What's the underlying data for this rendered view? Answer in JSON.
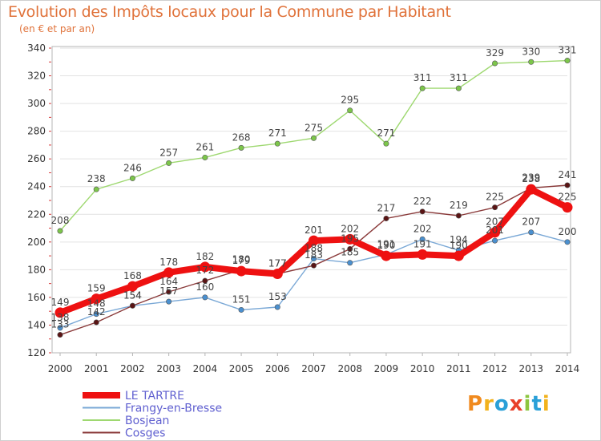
{
  "header": {
    "title": "Evolution des Impôts locaux pour la Commune par Habitant",
    "subtitle": "(en € et par an)"
  },
  "logo": {
    "text": "Proxiti",
    "letter_colors": [
      "#f08a1e",
      "#f2b21c",
      "#2aa0d8",
      "#e8402a",
      "#8cc63f",
      "#2aa0d8",
      "#f2b21c"
    ]
  },
  "colors": {
    "plot_border": "#b5b5b5",
    "grid": "#e2e2e2",
    "axis_tick": "#d83a3a"
  },
  "chart_data": {
    "type": "line",
    "title": "Evolution des Impôts locaux pour la Commune par Habitant",
    "subtitle": "(en € et par an)",
    "x": [
      2000,
      2001,
      2002,
      2003,
      2004,
      2005,
      2006,
      2007,
      2008,
      2009,
      2010,
      2011,
      2012,
      2013,
      2014
    ],
    "x_tick_labels": [
      "2000",
      "2001",
      "2002",
      "2003",
      "2004",
      "2005",
      "2006",
      "2007",
      "2008",
      "2009",
      "2010",
      "2011",
      "2012",
      "2013",
      "2014"
    ],
    "ylim": [
      120,
      340
    ],
    "y_ticks": [
      120,
      140,
      160,
      180,
      200,
      220,
      240,
      260,
      280,
      300,
      320,
      340
    ],
    "grid": "horizontal",
    "legend_position": "bottom-left",
    "series": [
      {
        "name": "Bosjean",
        "color": "#9ed870",
        "marker_color": "#7cc64a",
        "values": [
          208,
          238,
          246,
          257,
          261,
          268,
          271,
          275,
          295,
          271,
          311,
          311,
          329,
          330,
          331
        ]
      },
      {
        "name": "Frangy-en-Bresse",
        "color": "#7aa8d6",
        "marker_color": "#4a90d0",
        "values": [
          138,
          148,
          154,
          157,
          160,
          151,
          153,
          188,
          185,
          191,
          202,
          194,
          201,
          207,
          200
        ]
      },
      {
        "name": "Cosges",
        "color": "#8a3a3a",
        "marker_color": "#5a1414",
        "values": [
          133,
          142,
          154,
          164,
          172,
          180,
          177,
          183,
          195,
          217,
          222,
          219,
          225,
          239,
          241
        ]
      },
      {
        "name": "LE TARTRE",
        "color": "#ee1111",
        "marker_color": "#ee1111",
        "values": [
          149,
          159,
          168,
          178,
          182,
          179,
          177,
          201,
          202,
          190,
          191,
          190,
          207,
          238,
          225
        ]
      }
    ],
    "data_labels": [
      {
        "series": "Bosjean",
        "values": [
          "208",
          "238",
          "246",
          "257",
          "261",
          "268",
          "271",
          "275",
          "295",
          "271",
          "311",
          "311",
          "329",
          "330",
          "331"
        ]
      },
      {
        "series": "Frangy-en-Bresse",
        "values": [
          "138",
          "148",
          "154",
          "157",
          "160",
          "151",
          "153",
          "188",
          "185",
          "191",
          "202",
          "194",
          "201",
          "207",
          "200"
        ]
      },
      {
        "series": "Cosges",
        "values": [
          "133",
          "142",
          "154",
          "164",
          "172",
          "180",
          "177",
          "183",
          "195",
          "217",
          "222",
          "219",
          "225",
          "239",
          "241"
        ]
      },
      {
        "series": "LE TARTRE",
        "values": [
          "149",
          "159",
          "168",
          "178",
          "182",
          "179",
          "177",
          "201",
          "202",
          "190",
          "191",
          "190",
          "207",
          "238",
          "225"
        ]
      }
    ]
  },
  "legend": {
    "items": [
      {
        "label": "LE TARTRE",
        "color": "#ee1111",
        "thick": true
      },
      {
        "label": "Frangy-en-Bresse",
        "color": "#7aa8d6",
        "thick": false
      },
      {
        "label": "Bosjean",
        "color": "#9ed870",
        "thick": false
      },
      {
        "label": "Cosges",
        "color": "#8a3a3a",
        "thick": false
      }
    ]
  }
}
